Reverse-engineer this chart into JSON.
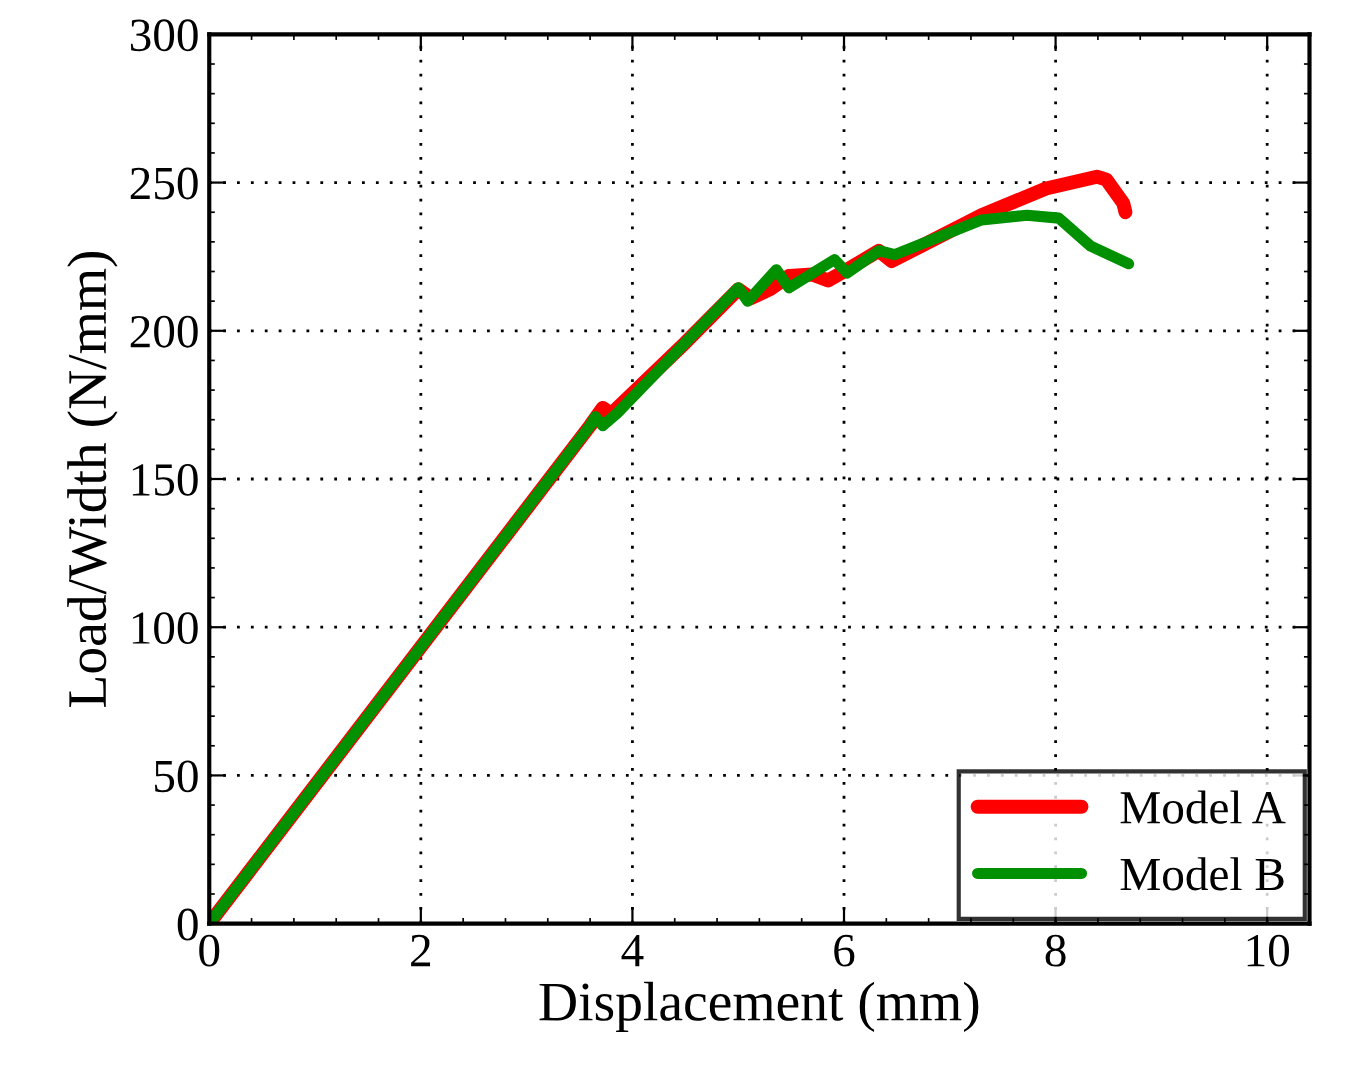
{
  "chart_data": {
    "type": "line",
    "xlabel": "Displacement (mm)",
    "ylabel": "Load/Width (N/mm)",
    "xlim": [
      0,
      10.4
    ],
    "ylim": [
      0,
      300
    ],
    "xticks": [
      0,
      2,
      4,
      6,
      8,
      10
    ],
    "yticks": [
      0,
      50,
      100,
      150,
      200,
      250,
      300
    ],
    "grid": true,
    "legend": "bottom right",
    "line_style": "solid",
    "marker": "none",
    "series": [
      {
        "name": "Model A",
        "color": "#ff0000",
        "x": [
          0,
          3.6,
          3.72,
          3.8,
          4.5,
          5.0,
          5.12,
          5.3,
          5.48,
          5.7,
          5.85,
          6.0,
          6.33,
          6.45,
          7.3,
          7.91,
          8.39,
          8.48,
          8.64,
          8.66
        ],
        "values": [
          0,
          168,
          174,
          172,
          196,
          214,
          211,
          214,
          218.5,
          219,
          217,
          220,
          227,
          223.5,
          239,
          248,
          252,
          251,
          243,
          240
        ]
      },
      {
        "name": "Model B",
        "color": "#009000",
        "x": [
          0,
          3.6,
          3.65,
          3.72,
          3.85,
          4.5,
          5.0,
          5.09,
          5.36,
          5.48,
          5.91,
          6.03,
          6.33,
          6.48,
          7.3,
          7.73,
          8.03,
          8.33,
          8.69
        ],
        "values": [
          0,
          168,
          171,
          168,
          172,
          196,
          214.5,
          210,
          220.6,
          214.5,
          224,
          219.5,
          227,
          225.7,
          237.4,
          239,
          238,
          228.6,
          222.6
        ]
      }
    ]
  }
}
